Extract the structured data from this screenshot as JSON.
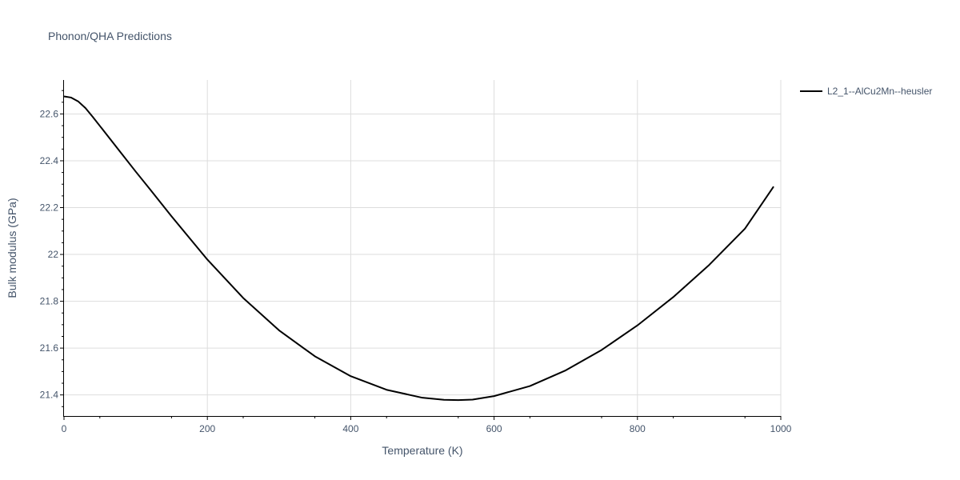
{
  "chart_data": {
    "type": "line",
    "title": "Phonon/QHA Predictions",
    "xlabel": "Temperature (K)",
    "ylabel": "Bulk modulus (GPa)",
    "xlim": [
      0,
      1000
    ],
    "ylim": [
      21.31,
      22.745
    ],
    "xticks": [
      0,
      200,
      400,
      600,
      800,
      1000
    ],
    "xtick_labels": [
      "0",
      "200",
      "400",
      "600",
      "800",
      "1000"
    ],
    "yticks": [
      21.4,
      21.6,
      21.8,
      22.0,
      22.2,
      22.4,
      22.6
    ],
    "ytick_labels": [
      "21.4",
      "21.6",
      "21.8",
      "22",
      "22.2",
      "22.4",
      "22.6"
    ],
    "grid": true,
    "legend_position": "top-right outside",
    "series": [
      {
        "name": "L2_1--AlCu2Mn--heusler",
        "color": "#000000",
        "x": [
          0,
          10,
          20,
          30,
          40,
          60,
          80,
          100,
          120,
          150,
          200,
          250,
          300,
          350,
          400,
          450,
          500,
          530,
          550,
          570,
          600,
          650,
          700,
          750,
          800,
          850,
          900,
          950,
          990
        ],
        "y": [
          22.675,
          22.67,
          22.653,
          22.625,
          22.588,
          22.51,
          22.432,
          22.354,
          22.278,
          22.163,
          21.978,
          21.814,
          21.676,
          21.565,
          21.48,
          21.422,
          21.388,
          21.379,
          21.378,
          21.38,
          21.395,
          21.438,
          21.505,
          21.592,
          21.697,
          21.818,
          21.955,
          22.11,
          22.29
        ]
      }
    ]
  }
}
